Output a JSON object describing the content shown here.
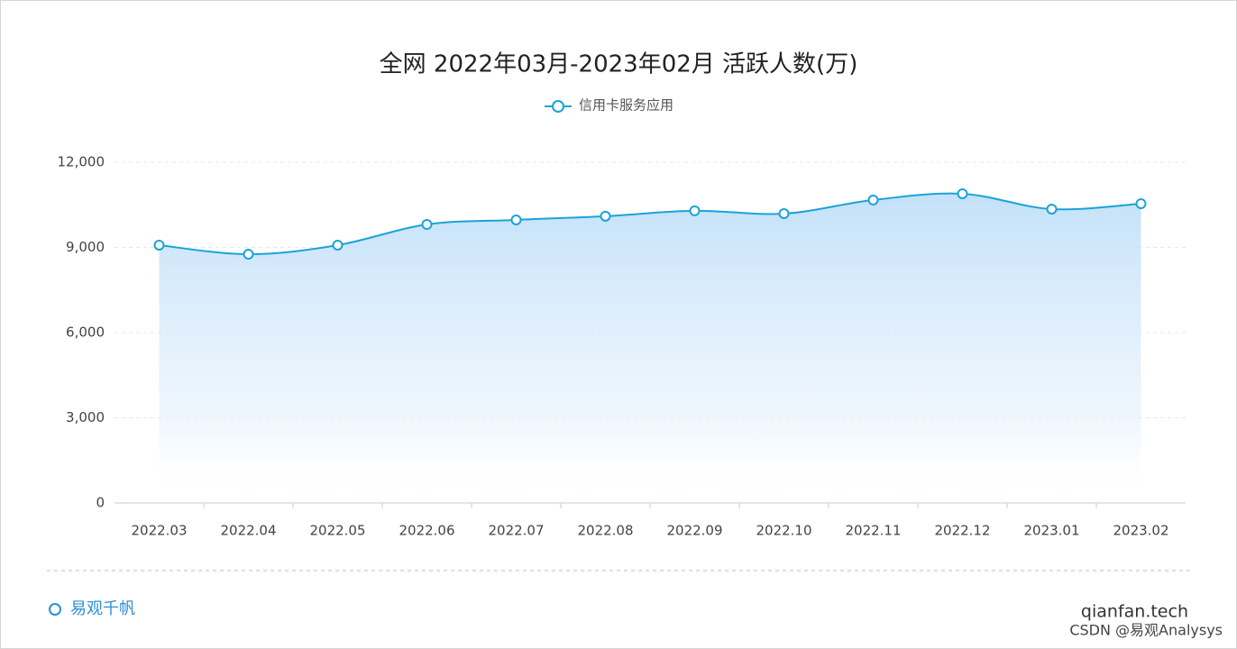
{
  "chart_data": {
    "type": "line",
    "title": "全网 2022年03月-2023年02月 活跃人数(万)",
    "categories": [
      "2022.03",
      "2022.04",
      "2022.05",
      "2022.06",
      "2022.07",
      "2022.08",
      "2022.09",
      "2022.10",
      "2022.11",
      "2022.12",
      "2023.01",
      "2023.02"
    ],
    "series": [
      {
        "name": "信用卡服务应用",
        "color": "#1aa3d9",
        "values": [
          9080,
          8760,
          9080,
          9810,
          9970,
          10100,
          10290,
          10190,
          10670,
          10890,
          10350,
          10540
        ]
      }
    ],
    "ylim": [
      0,
      12000
    ],
    "yticks": [
      0,
      {
        "value": 3000,
        "label": "3,000"
      },
      {
        "value": 6000,
        "label": "6,000"
      },
      {
        "value": 9000,
        "label": "9,000"
      },
      {
        "value": 12000,
        "label": "12,000"
      }
    ],
    "grid": true,
    "legend": "top"
  },
  "footer": {
    "brand": "易观千帆",
    "site": "qianfan.tech",
    "credit": "CSDN @易观Analysys"
  }
}
